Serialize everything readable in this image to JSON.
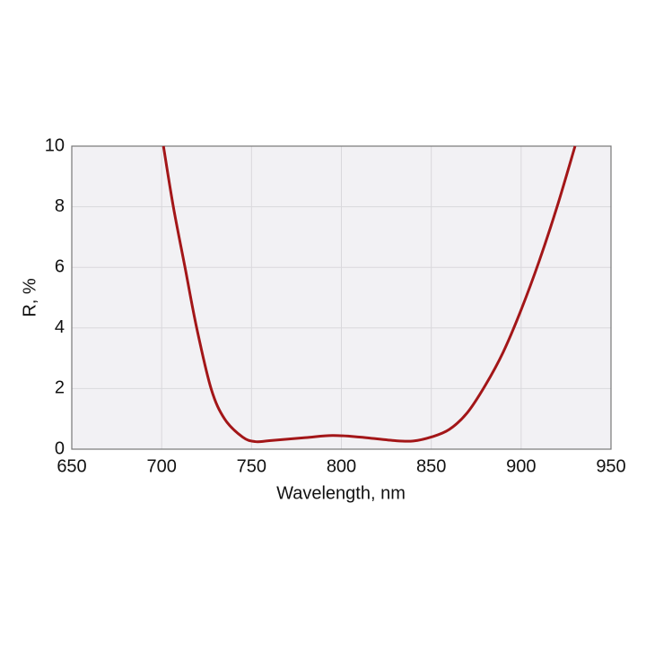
{
  "chart_data": {
    "type": "line",
    "x_label": "Wavelength, nm",
    "y_label": "R, %",
    "series": [
      {
        "name": "R",
        "color": "#a31618",
        "x": [
          701,
          706.5,
          713,
          719.5,
          727.5,
          735,
          745,
          752,
          760,
          780,
          795,
          810,
          830,
          840,
          850,
          860,
          870,
          880,
          890,
          900,
          910,
          920,
          930
        ],
        "values": [
          10,
          8,
          6,
          4,
          2,
          1,
          0.4,
          0.25,
          0.28,
          0.38,
          0.45,
          0.4,
          0.28,
          0.27,
          0.4,
          0.65,
          1.2,
          2.1,
          3.2,
          4.6,
          6.2,
          8.0,
          10
        ]
      }
    ],
    "xlim": [
      650,
      950
    ],
    "xticks": [
      650,
      700,
      750,
      800,
      850,
      900,
      950
    ],
    "ylim": [
      0,
      10
    ],
    "yticks": [
      0,
      2,
      4,
      6,
      8,
      10
    ],
    "grid": true
  }
}
